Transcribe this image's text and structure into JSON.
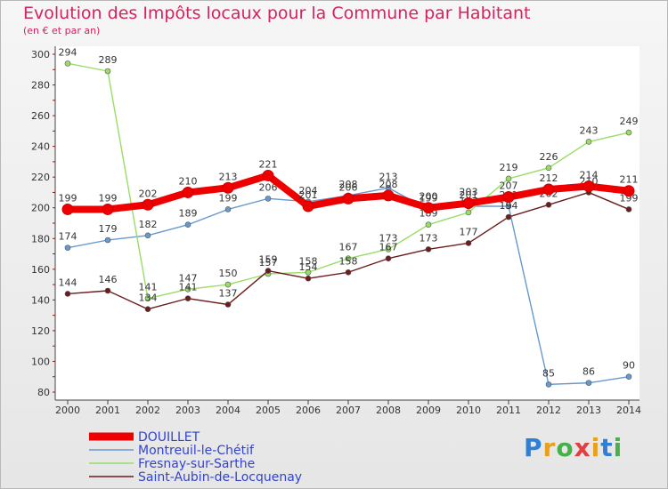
{
  "header": {
    "title": "Evolution des Impôts locaux pour la Commune par Habitant",
    "subtitle": "(en € et par an)"
  },
  "brand": {
    "logo_text": "Proxiti"
  },
  "chart_data": {
    "type": "line",
    "title": "Evolution des Impôts locaux pour la Commune par Habitant",
    "subtitle": "(en € et par an)",
    "xlabel": "",
    "ylabel": "",
    "x": [
      "2000",
      "2001",
      "2002",
      "2003",
      "2004",
      "2005",
      "2006",
      "2007",
      "2008",
      "2009",
      "2010",
      "2011",
      "2012",
      "2013",
      "2014"
    ],
    "ylim": [
      80,
      300
    ],
    "yticks": [
      80,
      100,
      120,
      140,
      160,
      180,
      200,
      220,
      240,
      260,
      280,
      300
    ],
    "legend_position": "bottom-left",
    "grid": false,
    "series": [
      {
        "name": "Montreuil-le-Chétif",
        "color": "#6699cc",
        "values": [
          174,
          179,
          182,
          189,
          199,
          206,
          204,
          208,
          213,
          199,
          201,
          201,
          85,
          86,
          90
        ],
        "labels": [
          "174",
          "179",
          "182",
          "189",
          "199",
          "206",
          "204",
          "208",
          "213",
          "199",
          "201",
          "201",
          "85",
          "86",
          "90"
        ]
      },
      {
        "name": "Fresnay-sur-Sarthe",
        "color": "#99dd66",
        "values": [
          294,
          289,
          141,
          147,
          150,
          157,
          158,
          167,
          173,
          189,
          197,
          219,
          226,
          243,
          249
        ],
        "labels": [
          "294",
          "289",
          "141",
          "147",
          "150",
          "157",
          "158",
          "167",
          "173",
          "189",
          "197",
          "219",
          "226",
          "243",
          "249"
        ]
      },
      {
        "name": "Saint-Aubin-de-Locquenay",
        "color": "#6b1c1c",
        "values": [
          144,
          146,
          134,
          141,
          137,
          159,
          154,
          158,
          167,
          173,
          177,
          194,
          202,
          210,
          199
        ],
        "labels": [
          "144",
          "146",
          "134",
          "141",
          "137",
          "159",
          "154",
          "158",
          "167",
          "173",
          "177",
          "194",
          "202",
          "210",
          "199"
        ]
      },
      {
        "name": "DOUILLET",
        "color": "#ee0000",
        "highlight": true,
        "values": [
          199,
          199,
          202,
          210,
          213,
          221,
          201,
          206,
          208,
          200,
          203,
          207,
          212,
          214,
          211
        ],
        "labels": [
          "199",
          "199",
          "202",
          "210",
          "213",
          "221",
          "201",
          "206",
          "208",
          "200",
          "203",
          "207",
          "212",
          "214",
          "211"
        ]
      }
    ]
  }
}
